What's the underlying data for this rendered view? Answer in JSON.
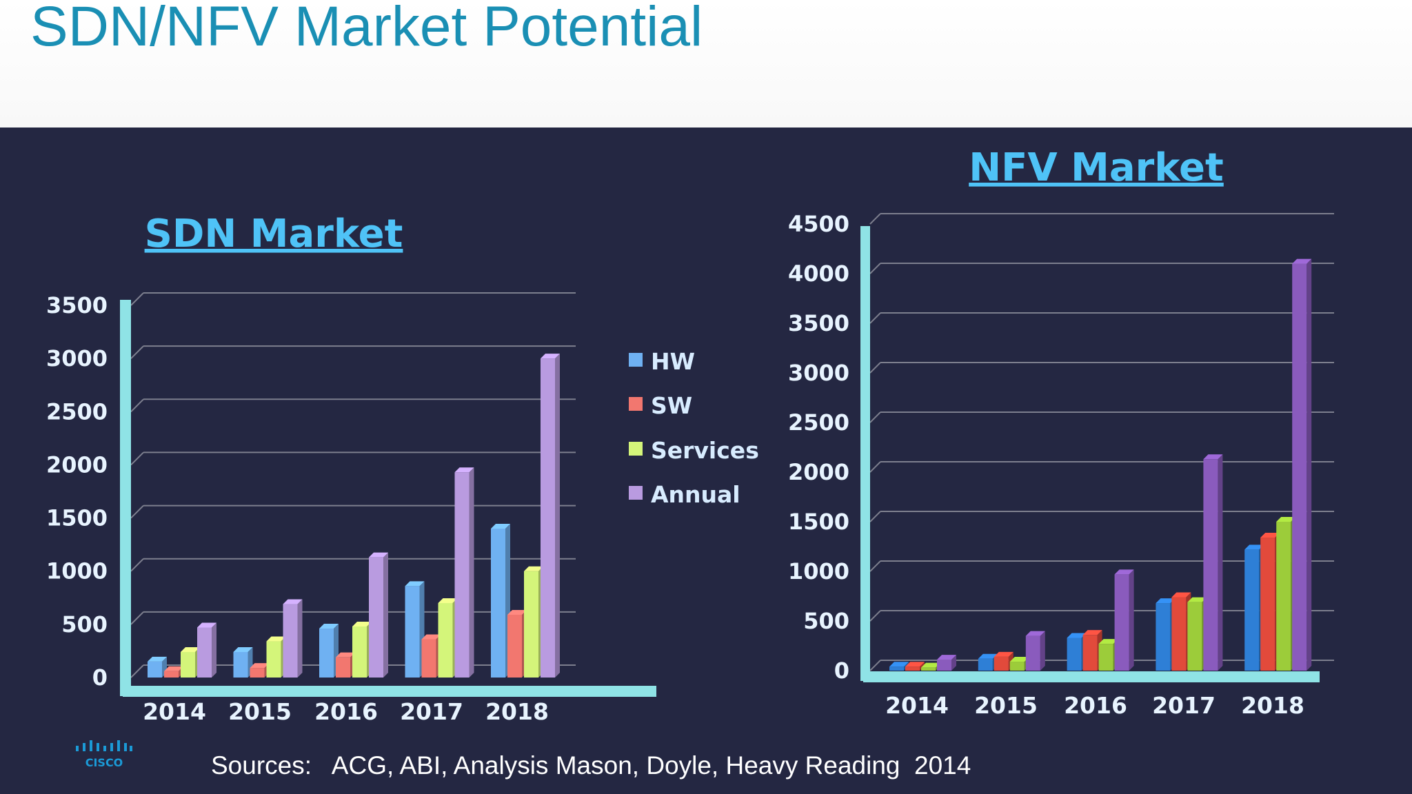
{
  "slide": {
    "title": "SDN/NFV Market Potential",
    "sources": "Sources:   ACG, ABI, Analysis Mason, Doyle, Heavy Reading  2014",
    "logo_text": "CISCO"
  },
  "colors": {
    "header_title": "#1a8fb4",
    "panel_bg": "#242742",
    "axis": "#8fe3e6",
    "chart_title": "#4fc3f7"
  },
  "chart_data": [
    {
      "type": "bar",
      "title": "SDN Market",
      "categories": [
        "2014",
        "2015",
        "2016",
        "2017",
        "2018"
      ],
      "series": [
        {
          "name": "HW",
          "color": "#6fb1f2",
          "values": [
            150,
            240,
            460,
            860,
            1400
          ]
        },
        {
          "name": "SW",
          "color": "#f2776f",
          "values": [
            60,
            90,
            190,
            360,
            590
          ]
        },
        {
          "name": "Services",
          "color": "#d4f57a",
          "values": [
            240,
            340,
            480,
            700,
            1000
          ]
        },
        {
          "name": "Annual",
          "color": "#b99be0",
          "values": [
            470,
            690,
            1130,
            1930,
            3000
          ]
        }
      ],
      "yticks": [
        "0",
        "500",
        "1000",
        "1500",
        "2000",
        "2500",
        "3000",
        "3500"
      ],
      "ylim": [
        0,
        3500
      ],
      "legend": "right",
      "grid": true
    },
    {
      "type": "bar",
      "title": "NFV Market",
      "categories": [
        "2014",
        "2015",
        "2016",
        "2017",
        "2018"
      ],
      "series": [
        {
          "name": "HW",
          "color": "#2e7fd6",
          "values": [
            40,
            120,
            330,
            680,
            1220
          ]
        },
        {
          "name": "SW",
          "color": "#e24a3b",
          "values": [
            40,
            140,
            360,
            740,
            1340
          ]
        },
        {
          "name": "Services",
          "color": "#9ccc3a",
          "values": [
            30,
            90,
            270,
            690,
            1500
          ]
        },
        {
          "name": "Annual",
          "color": "#8a5bbd",
          "values": [
            110,
            350,
            970,
            2130,
            4100
          ]
        }
      ],
      "yticks": [
        "0",
        "500",
        "1000",
        "1500",
        "2000",
        "2500",
        "3000",
        "3500",
        "4000",
        "4500"
      ],
      "ylim": [
        0,
        4500
      ],
      "legend": "none",
      "grid": true
    }
  ]
}
